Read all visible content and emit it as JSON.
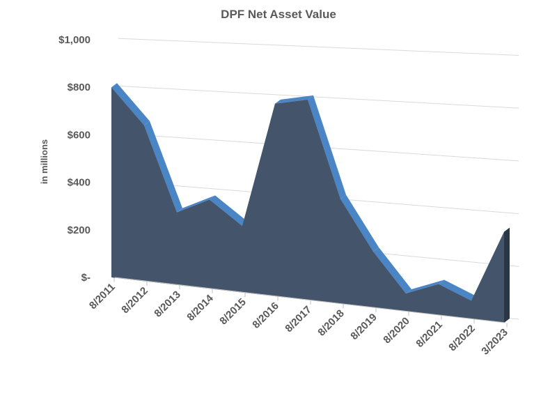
{
  "chart_data": {
    "type": "area3d",
    "title": "DPF Net Asset Value",
    "y_label": "in millions",
    "categories": [
      "8/2011",
      "8/2012",
      "8/2013",
      "8/2014",
      "8/2015",
      "8/2016",
      "8/2017",
      "8/2018",
      "8/2019",
      "8/2020",
      "8/2021",
      "8/2022",
      "3/2023"
    ],
    "values": [
      800,
      650,
      300,
      365,
      270,
      775,
      800,
      415,
      220,
      70,
      120,
      70,
      345
    ],
    "color": "#44546a",
    "top_color": "#4a86c5",
    "ylim": [
      0,
      1000
    ],
    "yticks": [
      {
        "value": 0,
        "label": "$-"
      },
      {
        "value": 200,
        "label": "$200"
      },
      {
        "value": 400,
        "label": "$400"
      },
      {
        "value": 600,
        "label": "$600"
      },
      {
        "value": 800,
        "label": "$800"
      },
      {
        "value": 1000,
        "label": "$1,000"
      }
    ],
    "grid": true
  }
}
